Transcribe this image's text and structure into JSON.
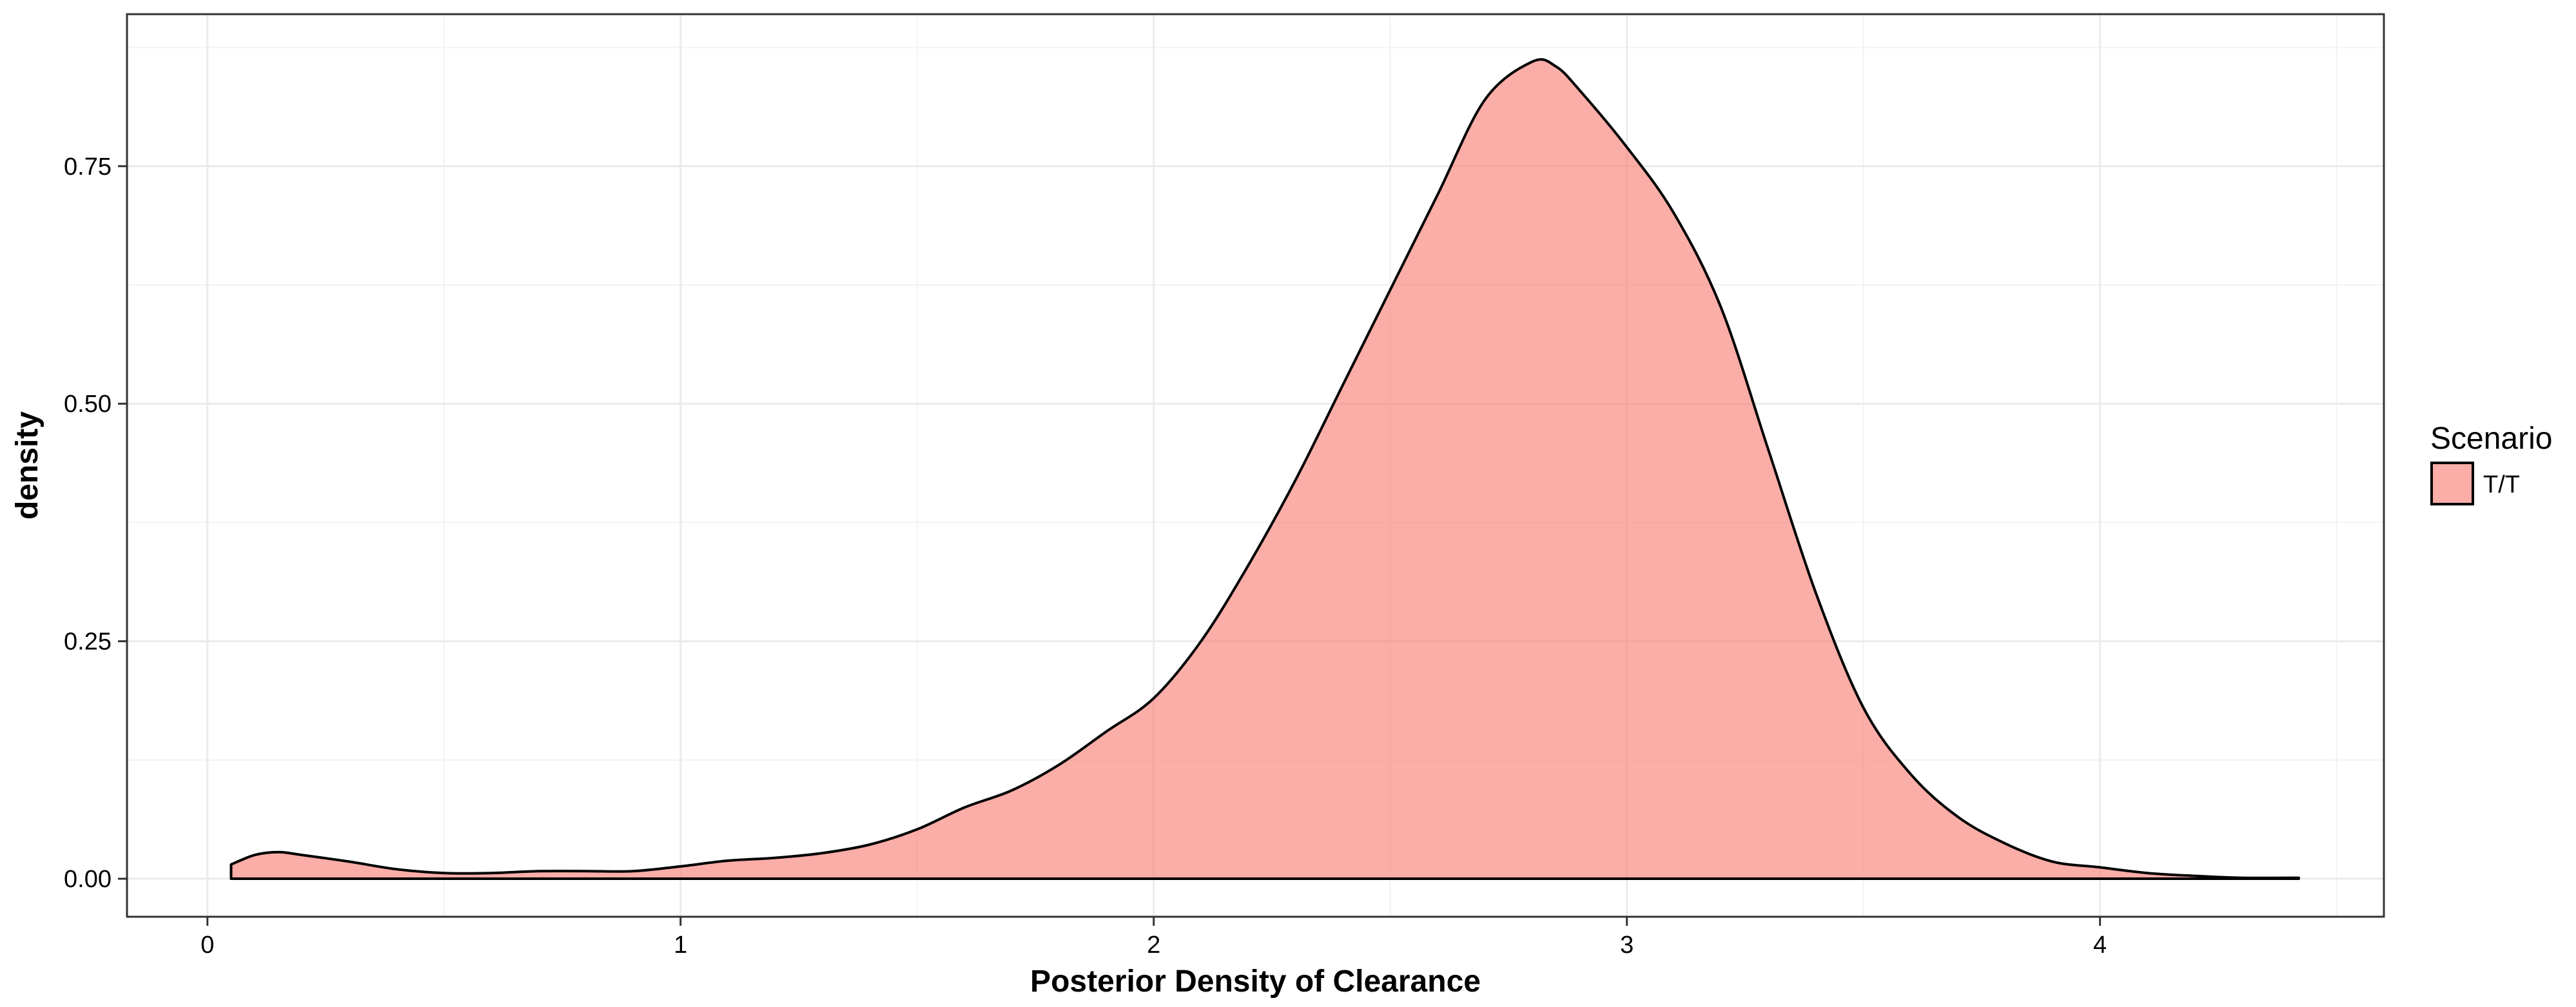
{
  "chart_data": {
    "type": "area",
    "title": "",
    "xlabel": "Posterior Density of Clearance",
    "ylabel": "density",
    "xlim": [
      -0.17,
      4.6
    ],
    "ylim": [
      -0.04,
      0.91
    ],
    "x_ticks": [
      0,
      1,
      2,
      3,
      4
    ],
    "x_tick_labels": [
      "0",
      "1",
      "2",
      "3",
      "4"
    ],
    "y_ticks": [
      0,
      0.25,
      0.5,
      0.75
    ],
    "y_tick_labels": [
      "0.00",
      "0.25",
      "0.50",
      "0.75"
    ],
    "grid": true,
    "legend": {
      "title": "Scenario",
      "position": "right",
      "entries": [
        "T/T"
      ]
    },
    "series": [
      {
        "name": "T/T",
        "fill": "#F8766D",
        "fill_opacity": 0.6,
        "outline": "#000000",
        "x": [
          0.05,
          0.1,
          0.15,
          0.2,
          0.3,
          0.4,
          0.5,
          0.6,
          0.7,
          0.8,
          0.9,
          1.0,
          1.1,
          1.2,
          1.3,
          1.4,
          1.5,
          1.6,
          1.7,
          1.8,
          1.9,
          2.0,
          2.1,
          2.2,
          2.3,
          2.4,
          2.5,
          2.6,
          2.7,
          2.8,
          2.85,
          2.9,
          3.0,
          3.1,
          3.2,
          3.3,
          3.4,
          3.5,
          3.6,
          3.7,
          3.8,
          3.9,
          4.0,
          4.1,
          4.2,
          4.3,
          4.42
        ],
        "y": [
          0.015,
          0.025,
          0.028,
          0.025,
          0.018,
          0.01,
          0.006,
          0.006,
          0.008,
          0.008,
          0.008,
          0.013,
          0.019,
          0.022,
          0.027,
          0.036,
          0.052,
          0.075,
          0.093,
          0.12,
          0.155,
          0.19,
          0.25,
          0.33,
          0.42,
          0.52,
          0.62,
          0.72,
          0.82,
          0.86,
          0.855,
          0.83,
          0.77,
          0.7,
          0.6,
          0.45,
          0.3,
          0.18,
          0.11,
          0.065,
          0.037,
          0.018,
          0.012,
          0.006,
          0.003,
          0.001,
          0.001
        ]
      }
    ]
  }
}
